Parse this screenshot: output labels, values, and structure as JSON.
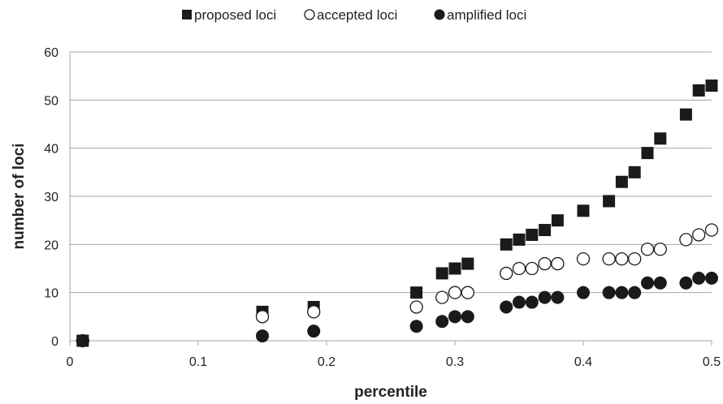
{
  "chart_data": {
    "type": "scatter",
    "xlabel": "percentile",
    "ylabel": "number of loci",
    "xlim": [
      0,
      0.5
    ],
    "ylim": [
      0,
      60
    ],
    "x_ticks": [
      "0",
      "0.1",
      "0.2",
      "0.3",
      "0.4",
      "0.5"
    ],
    "y_ticks": [
      "0",
      "10",
      "20",
      "30",
      "40",
      "50",
      "60"
    ],
    "grid": "horizontal",
    "legend_position": "top",
    "series": [
      {
        "name": "proposed loci",
        "marker": "filled-square",
        "color": "#1a1a1a",
        "x": [
          0.01,
          0.15,
          0.19,
          0.27,
          0.29,
          0.3,
          0.31,
          0.34,
          0.35,
          0.36,
          0.37,
          0.38,
          0.4,
          0.42,
          0.43,
          0.44,
          0.45,
          0.46,
          0.48,
          0.49,
          0.5
        ],
        "y": [
          0,
          6,
          7,
          10,
          14,
          15,
          16,
          20,
          21,
          22,
          23,
          25,
          27,
          29,
          33,
          35,
          39,
          42,
          47,
          52,
          53
        ]
      },
      {
        "name": "accepted loci",
        "marker": "open-circle",
        "color": "#1a1a1a",
        "x": [
          0.01,
          0.15,
          0.19,
          0.27,
          0.29,
          0.3,
          0.31,
          0.34,
          0.35,
          0.36,
          0.37,
          0.38,
          0.4,
          0.42,
          0.43,
          0.44,
          0.45,
          0.46,
          0.48,
          0.49,
          0.5
        ],
        "y": [
          0,
          5,
          6,
          7,
          9,
          10,
          10,
          14,
          15,
          15,
          16,
          16,
          17,
          17,
          17,
          17,
          19,
          19,
          21,
          22,
          23
        ]
      },
      {
        "name": "amplified loci",
        "marker": "filled-circle",
        "color": "#1a1a1a",
        "x": [
          0.01,
          0.15,
          0.19,
          0.27,
          0.29,
          0.3,
          0.31,
          0.34,
          0.35,
          0.36,
          0.37,
          0.38,
          0.4,
          0.42,
          0.43,
          0.44,
          0.45,
          0.46,
          0.48,
          0.49,
          0.5
        ],
        "y": [
          0,
          1,
          2,
          3,
          4,
          5,
          5,
          7,
          8,
          8,
          9,
          9,
          10,
          10,
          10,
          10,
          12,
          12,
          12,
          13,
          13
        ]
      }
    ]
  }
}
